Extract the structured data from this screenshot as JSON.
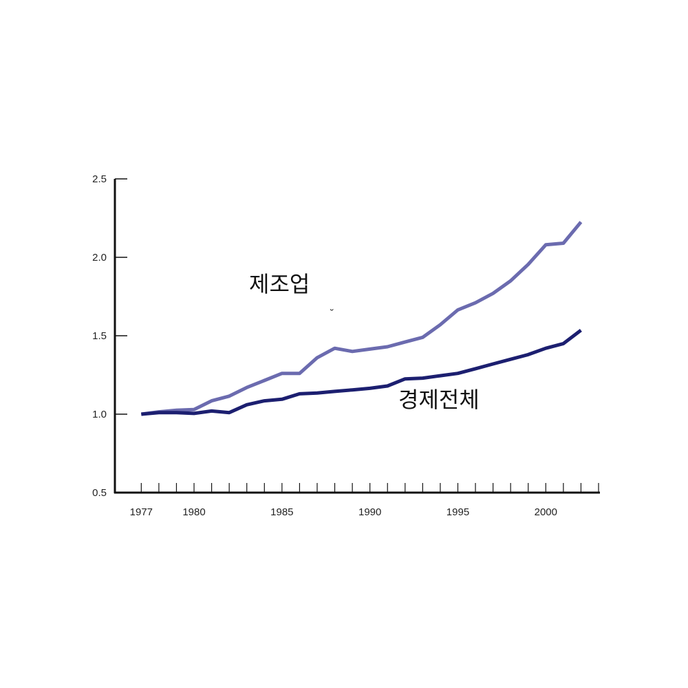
{
  "chart_data": {
    "type": "line",
    "title": "",
    "xlabel": "",
    "ylabel": "",
    "x": [
      1977,
      1978,
      1979,
      1980,
      1981,
      1982,
      1983,
      1984,
      1985,
      1986,
      1987,
      1988,
      1989,
      1990,
      1991,
      1992,
      1993,
      1994,
      1995,
      1996,
      1997,
      1998,
      1999,
      2000,
      2001,
      2002
    ],
    "xlim": [
      1975.5,
      2003
    ],
    "ylim": [
      0.5,
      2.5
    ],
    "x_ticks_labeled": [
      1977,
      1980,
      1985,
      1990,
      1995,
      2000
    ],
    "y_ticks": [
      0.5,
      1.0,
      1.5,
      2.0,
      2.5
    ],
    "x_tick_labels": [
      "1977",
      "1980",
      "1985",
      "1990",
      "1995",
      "2000"
    ],
    "y_tick_labels": [
      "0.5",
      "1.0",
      "1.5",
      "2.0",
      "2.5"
    ],
    "grid": false,
    "series": [
      {
        "name": "제조업",
        "color": "#6b6baf",
        "values": [
          1.0,
          1.015,
          1.025,
          1.03,
          1.085,
          1.115,
          1.17,
          1.215,
          1.26,
          1.26,
          1.36,
          1.42,
          1.4,
          1.415,
          1.43,
          1.46,
          1.49,
          1.57,
          1.665,
          1.71,
          1.77,
          1.85,
          1.955,
          2.08,
          2.09,
          2.225
        ]
      },
      {
        "name": "경제전체",
        "color": "#1c1f70",
        "values": [
          1.0,
          1.01,
          1.01,
          1.005,
          1.02,
          1.01,
          1.06,
          1.085,
          1.095,
          1.13,
          1.135,
          1.145,
          1.155,
          1.165,
          1.18,
          1.225,
          1.23,
          1.245,
          1.26,
          1.29,
          1.32,
          1.35,
          1.38,
          1.42,
          1.45,
          1.535
        ]
      }
    ],
    "annotations": [
      "˘"
    ]
  }
}
